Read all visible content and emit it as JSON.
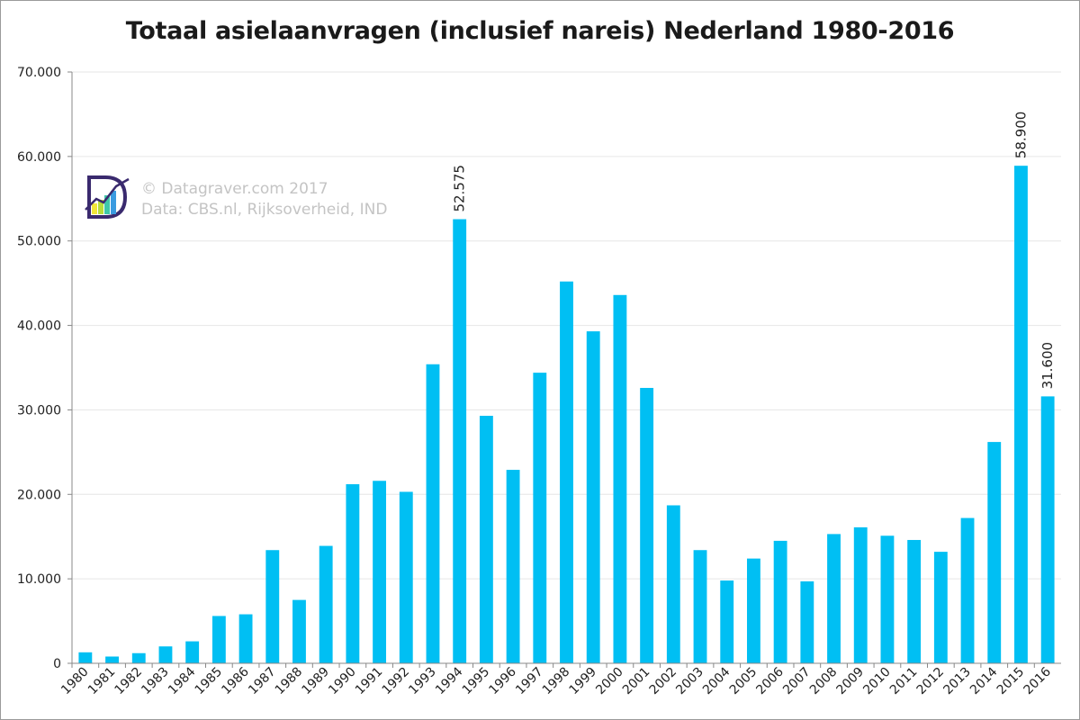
{
  "chart_data": {
    "type": "bar",
    "title": "Totaal asielaanvragen (inclusief nareis) Nederland 1980-2016",
    "xlabel": "",
    "ylabel": "",
    "ylim": [
      0,
      70000
    ],
    "y_ticks": [
      "0",
      "10.000",
      "20.000",
      "30.000",
      "40.000",
      "50.000",
      "60.000",
      "70.000"
    ],
    "grid": true,
    "bar_color": "#00bff3",
    "categories": [
      "1980",
      "1981",
      "1982",
      "1983",
      "1984",
      "1985",
      "1986",
      "1987",
      "1988",
      "1989",
      "1990",
      "1991",
      "1992",
      "1993",
      "1994",
      "1995",
      "1996",
      "1997",
      "1998",
      "1999",
      "2000",
      "2001",
      "2002",
      "2003",
      "2004",
      "2005",
      "2006",
      "2007",
      "2008",
      "2009",
      "2010",
      "2011",
      "2012",
      "2013",
      "2014",
      "2015",
      "2016"
    ],
    "values": [
      1300,
      800,
      1200,
      2000,
      2600,
      5600,
      5800,
      13400,
      7500,
      13900,
      21200,
      21600,
      20300,
      35400,
      52575,
      29300,
      22900,
      34400,
      45200,
      39300,
      43600,
      32600,
      18700,
      13400,
      9800,
      12400,
      14500,
      9700,
      15300,
      16100,
      15100,
      14600,
      13200,
      17200,
      26200,
      58900,
      31600
    ],
    "data_labels": [
      {
        "category": "1994",
        "text": "52.575"
      },
      {
        "category": "2015",
        "text": "58.900"
      },
      {
        "category": "2016",
        "text": "31.600"
      }
    ]
  },
  "watermark": {
    "line1": "© Datagraver.com 2017",
    "line2": "Data: CBS.nl, Rijksoverheid, IND",
    "logo": "datagraver-logo-icon"
  }
}
